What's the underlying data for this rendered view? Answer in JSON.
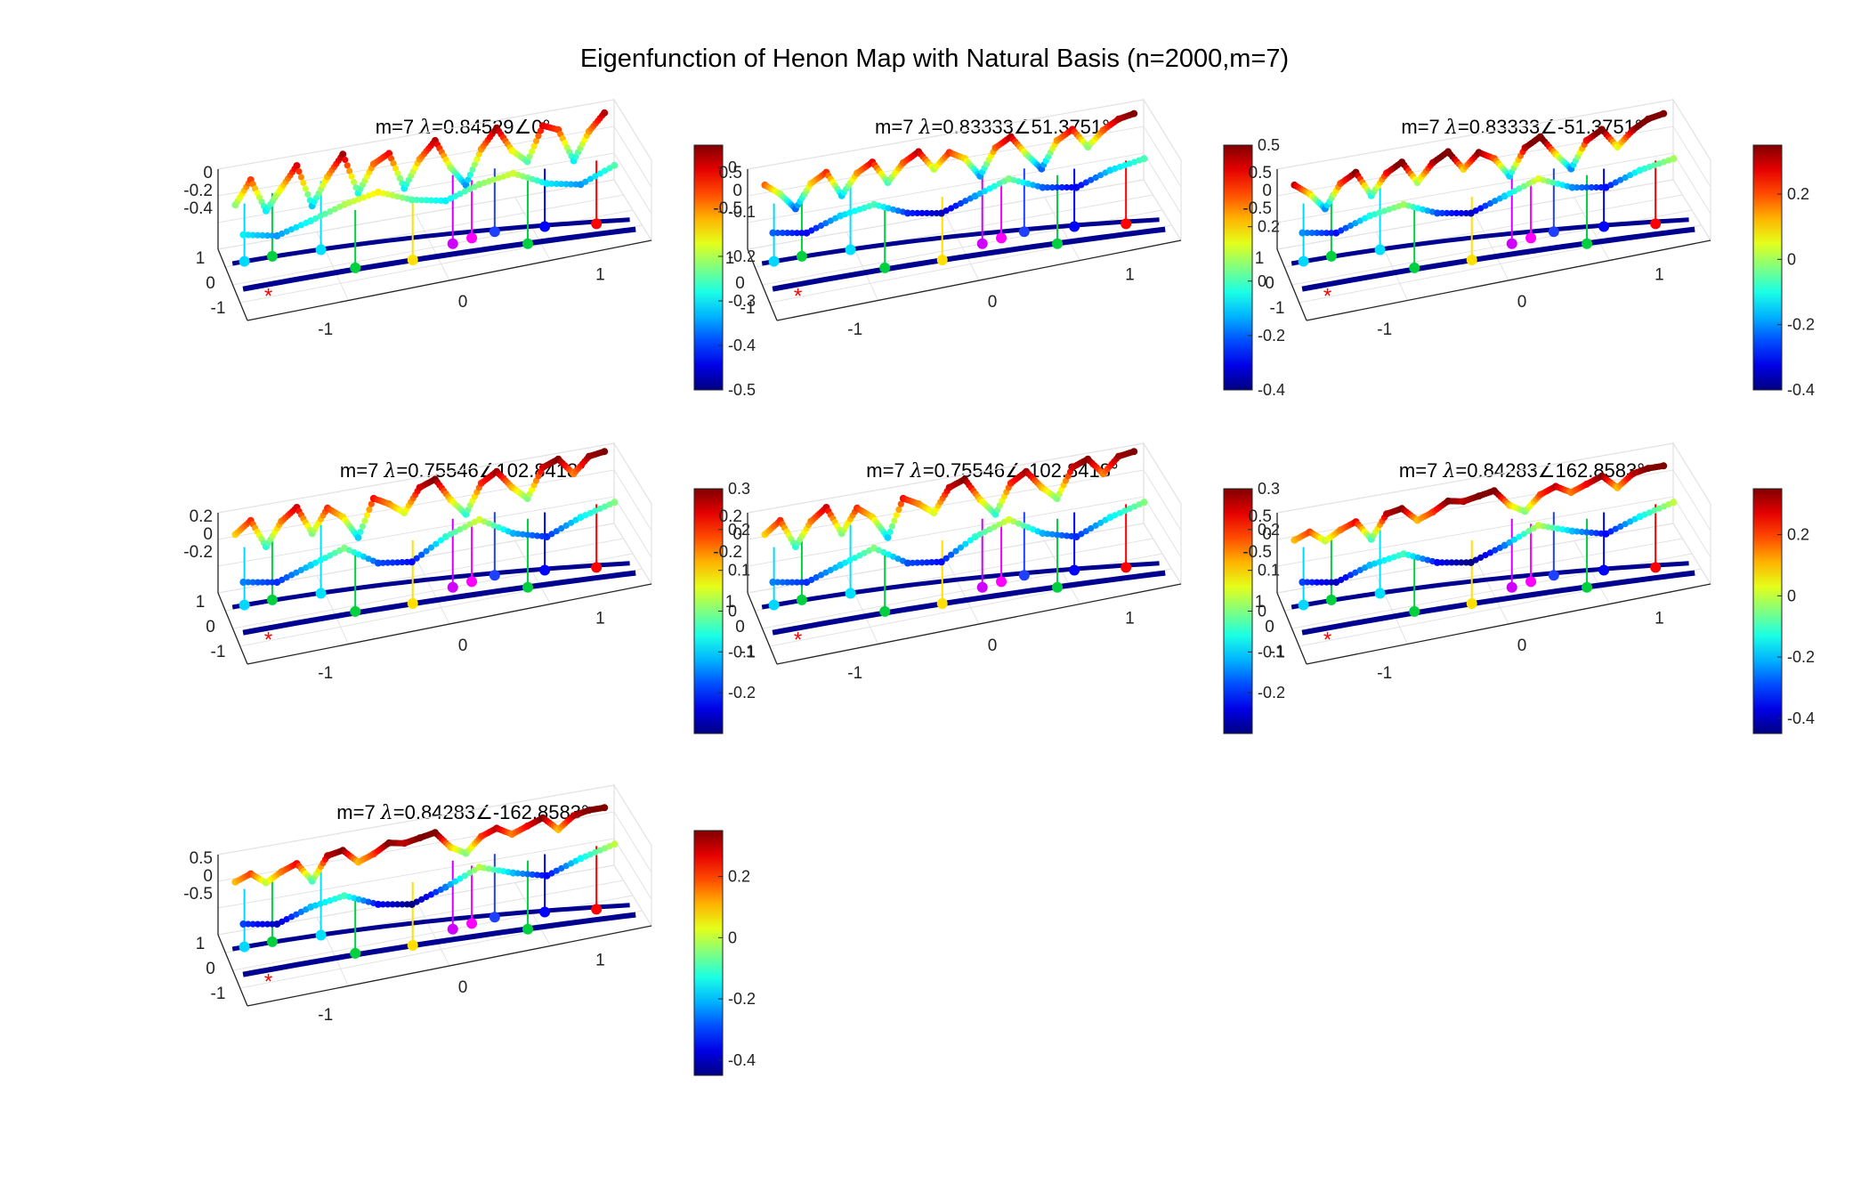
{
  "figure": {
    "title": "Eigenfunction of Henon Map with Natural Basis (n=2000,m=7)"
  },
  "chart_data": [
    {
      "type": "scatter",
      "title_prefix": "m=7 ",
      "title_symbol": "λ",
      "title_value": "=0.84529∠0°",
      "x_ticks": [
        "-1",
        "0",
        "1"
      ],
      "y_ticks": [
        "-1",
        "0",
        "1"
      ],
      "z_ticks": [
        "0",
        "-0.2",
        "-0.4"
      ],
      "zlim": [
        -0.5,
        0.1
      ],
      "colorbar_ticks": [
        "0",
        "-0.1",
        "-0.2",
        "-0.3",
        "-0.4",
        "-0.5"
      ],
      "colorbar_values": [
        0,
        -0.1,
        -0.2,
        -0.3,
        -0.4,
        -0.5
      ],
      "clim": [
        -0.5,
        0.05
      ],
      "colormap": "jet",
      "grid": true,
      "series": [
        {
          "values": [
            -0.22,
            -0.05,
            -0.3,
            -0.15,
            0.0,
            -0.32,
            -0.12,
            0.03,
            -0.28,
            -0.08,
            -0.02,
            -0.3,
            -0.1,
            0.02,
            -0.2,
            -0.35,
            -0.1,
            0.04,
            -0.15,
            -0.25,
            0.0,
            -0.05,
            -0.3,
            -0.1,
            0.02
          ]
        },
        {
          "values": [
            -0.3,
            -0.35,
            -0.28,
            -0.2,
            -0.15,
            -0.25,
            -0.3,
            -0.22,
            -0.18,
            -0.3,
            -0.35,
            -0.25
          ]
        }
      ]
    },
    {
      "type": "scatter",
      "title_prefix": "m=7 ",
      "title_symbol": "λ",
      "title_value": "=0.83333∠51.3751°",
      "x_ticks": [
        "-1",
        "0",
        "1"
      ],
      "y_ticks": [
        "-1",
        "0",
        "1"
      ],
      "z_ticks": [
        "0.5",
        "0",
        "-0.5"
      ],
      "zlim": [
        -0.7,
        0.7
      ],
      "colorbar_ticks": [
        "0.5",
        "0.2",
        "0",
        "-0.2",
        "-0.4"
      ],
      "colorbar_values": [
        0.5,
        0.2,
        0,
        -0.2,
        -0.4
      ],
      "clim": [
        -0.4,
        0.5
      ],
      "colormap": "jet",
      "grid": true,
      "series": [
        {
          "values": [
            0.3,
            0.1,
            -0.2,
            0.2,
            0.35,
            -0.1,
            0.25,
            0.4,
            0.0,
            0.3,
            0.45,
            0.1,
            0.35,
            0.2,
            -0.15,
            0.3,
            0.45,
            0.1,
            -0.2,
            0.25,
            0.4,
            0.05,
            0.3,
            0.45,
            0.5
          ]
        },
        {
          "values": [
            -0.2,
            -0.3,
            -0.1,
            0.0,
            -0.25,
            -0.35,
            -0.15,
            0.05,
            -0.2,
            -0.3,
            -0.1,
            0.0
          ]
        }
      ]
    },
    {
      "type": "scatter",
      "title_prefix": "m=7 ",
      "title_symbol": "λ",
      "title_value": "=0.83333∠-51.3751°",
      "x_ticks": [
        "-1",
        "0",
        "1"
      ],
      "y_ticks": [
        "-1",
        "0",
        "1"
      ],
      "z_ticks": [
        "0.5",
        "0",
        "-0.5"
      ],
      "zlim": [
        -0.7,
        0.7
      ],
      "colorbar_ticks": [
        "0.2",
        "0",
        "-0.2",
        "-0.4"
      ],
      "colorbar_values": [
        0.2,
        0,
        -0.2,
        -0.4
      ],
      "clim": [
        -0.4,
        0.35
      ],
      "colormap": "jet",
      "grid": true,
      "series": [
        {
          "values": [
            0.3,
            0.1,
            -0.2,
            0.2,
            0.35,
            -0.1,
            0.25,
            0.4,
            0.0,
            0.3,
            0.45,
            0.1,
            0.35,
            0.2,
            -0.15,
            0.3,
            0.45,
            0.1,
            -0.2,
            0.25,
            0.4,
            0.05,
            0.3,
            0.45,
            0.5
          ]
        },
        {
          "values": [
            -0.2,
            -0.3,
            -0.1,
            0.0,
            -0.25,
            -0.35,
            -0.15,
            0.05,
            -0.2,
            -0.3,
            -0.1,
            0.0
          ]
        }
      ]
    },
    {
      "type": "scatter",
      "title_prefix": "m=7 ",
      "title_symbol": "λ",
      "title_value": "=0.75546∠102.8418°",
      "x_ticks": [
        "-1",
        "0",
        "1"
      ],
      "y_ticks": [
        "-1",
        "0",
        "1"
      ],
      "z_ticks": [
        "0.2",
        "0",
        "-0.2"
      ],
      "zlim": [
        -0.35,
        0.35
      ],
      "colorbar_ticks": [
        "0.3",
        "0.2",
        "0.1",
        "0",
        "-0.1",
        "-0.2"
      ],
      "colorbar_values": [
        0.3,
        0.2,
        0.1,
        0,
        -0.1,
        -0.2
      ],
      "clim": [
        -0.3,
        0.3
      ],
      "colormap": "jet",
      "grid": true,
      "series": [
        {
          "values": [
            0.1,
            0.2,
            -0.05,
            0.15,
            0.25,
            0.0,
            0.2,
            0.1,
            -0.1,
            0.22,
            0.15,
            0.05,
            0.25,
            0.3,
            0.1,
            -0.05,
            0.2,
            0.28,
            0.12,
            0.0,
            0.25,
            0.3,
            0.15,
            0.28,
            0.3
          ]
        },
        {
          "values": [
            -0.15,
            -0.2,
            -0.1,
            0.0,
            -0.18,
            -0.22,
            -0.05,
            0.05,
            -0.12,
            -0.2,
            -0.08,
            0.0
          ]
        }
      ]
    },
    {
      "type": "scatter",
      "title_prefix": "m=7 ",
      "title_symbol": "λ",
      "title_value": "=0.75546∠-102.8418°",
      "x_ticks": [
        "-1",
        "0",
        "1"
      ],
      "y_ticks": [
        "-1",
        "0",
        "1"
      ],
      "z_ticks": [
        "0.2",
        "0",
        "-0.2"
      ],
      "zlim": [
        -0.35,
        0.35
      ],
      "colorbar_ticks": [
        "0.3",
        "0.2",
        "0.1",
        "0",
        "-0.1",
        "-0.2"
      ],
      "colorbar_values": [
        0.3,
        0.2,
        0.1,
        0,
        -0.1,
        -0.2
      ],
      "clim": [
        -0.3,
        0.3
      ],
      "colormap": "jet",
      "grid": true,
      "series": [
        {
          "values": [
            0.1,
            0.2,
            -0.05,
            0.15,
            0.25,
            0.0,
            0.2,
            0.1,
            -0.1,
            0.22,
            0.15,
            0.05,
            0.25,
            0.3,
            0.1,
            -0.05,
            0.2,
            0.28,
            0.12,
            0.0,
            0.25,
            0.3,
            0.15,
            0.28,
            0.3
          ]
        },
        {
          "values": [
            -0.15,
            -0.2,
            -0.1,
            0.0,
            -0.18,
            -0.22,
            -0.05,
            0.05,
            -0.12,
            -0.2,
            -0.08,
            0.0
          ]
        }
      ]
    },
    {
      "type": "scatter",
      "title_prefix": "m=7 ",
      "title_symbol": "λ",
      "title_value": "=0.84283∠162.8583°",
      "x_ticks": [
        "-1",
        "0",
        "1"
      ],
      "y_ticks": [
        "-1",
        "0",
        "1"
      ],
      "z_ticks": [
        "0.5",
        "0",
        "-0.5"
      ],
      "zlim": [
        -0.7,
        0.7
      ],
      "colorbar_ticks": [
        "0.2",
        "0",
        "-0.2",
        "-0.4"
      ],
      "colorbar_values": [
        0.2,
        0,
        -0.2,
        -0.4
      ],
      "clim": [
        -0.45,
        0.35
      ],
      "colormap": "jet",
      "grid": true,
      "series": [
        {
          "values": [
            0.1,
            0.2,
            0.0,
            0.15,
            0.25,
            -0.1,
            0.3,
            0.35,
            0.1,
            0.2,
            0.35,
            0.3,
            0.35,
            0.4,
            0.1,
            -0.05,
            0.2,
            0.3,
            0.15,
            0.25,
            0.35,
            0.1,
            0.3,
            0.35,
            0.35
          ]
        },
        {
          "values": [
            -0.3,
            -0.4,
            -0.2,
            -0.1,
            -0.35,
            -0.45,
            -0.25,
            0.0,
            -0.2,
            -0.35,
            -0.15,
            0.0
          ]
        }
      ]
    },
    {
      "type": "scatter",
      "title_prefix": "m=7 ",
      "title_symbol": "λ",
      "title_value": "=0.84283∠-162.8583°",
      "x_ticks": [
        "-1",
        "0",
        "1"
      ],
      "y_ticks": [
        "-1",
        "0",
        "1"
      ],
      "z_ticks": [
        "0.5",
        "0",
        "-0.5"
      ],
      "zlim": [
        -0.7,
        0.7
      ],
      "colorbar_ticks": [
        "0.2",
        "0",
        "-0.2",
        "-0.4"
      ],
      "colorbar_values": [
        0.2,
        0,
        -0.2,
        -0.4
      ],
      "clim": [
        -0.45,
        0.35
      ],
      "colormap": "jet",
      "grid": true,
      "series": [
        {
          "values": [
            0.1,
            0.2,
            0.0,
            0.15,
            0.25,
            -0.1,
            0.3,
            0.35,
            0.1,
            0.2,
            0.35,
            0.3,
            0.35,
            0.4,
            0.1,
            -0.05,
            0.2,
            0.3,
            0.15,
            0.25,
            0.35,
            0.1,
            0.3,
            0.35,
            0.35
          ]
        },
        {
          "values": [
            -0.3,
            -0.4,
            -0.2,
            -0.1,
            -0.35,
            -0.45,
            -0.25,
            0.0,
            -0.2,
            -0.35,
            -0.15,
            0.0
          ]
        }
      ]
    }
  ],
  "stems": {
    "colors": [
      "#00d8ff",
      "#00d040",
      "#00e0ff",
      "#00d040",
      "#ffe000",
      "#d000ff",
      "#ff00ff",
      "#2040ff",
      "#00d040",
      "#0000ff",
      "#ff0000"
    ],
    "marker_star": "#ff0000",
    "base_curve": "#000090"
  }
}
